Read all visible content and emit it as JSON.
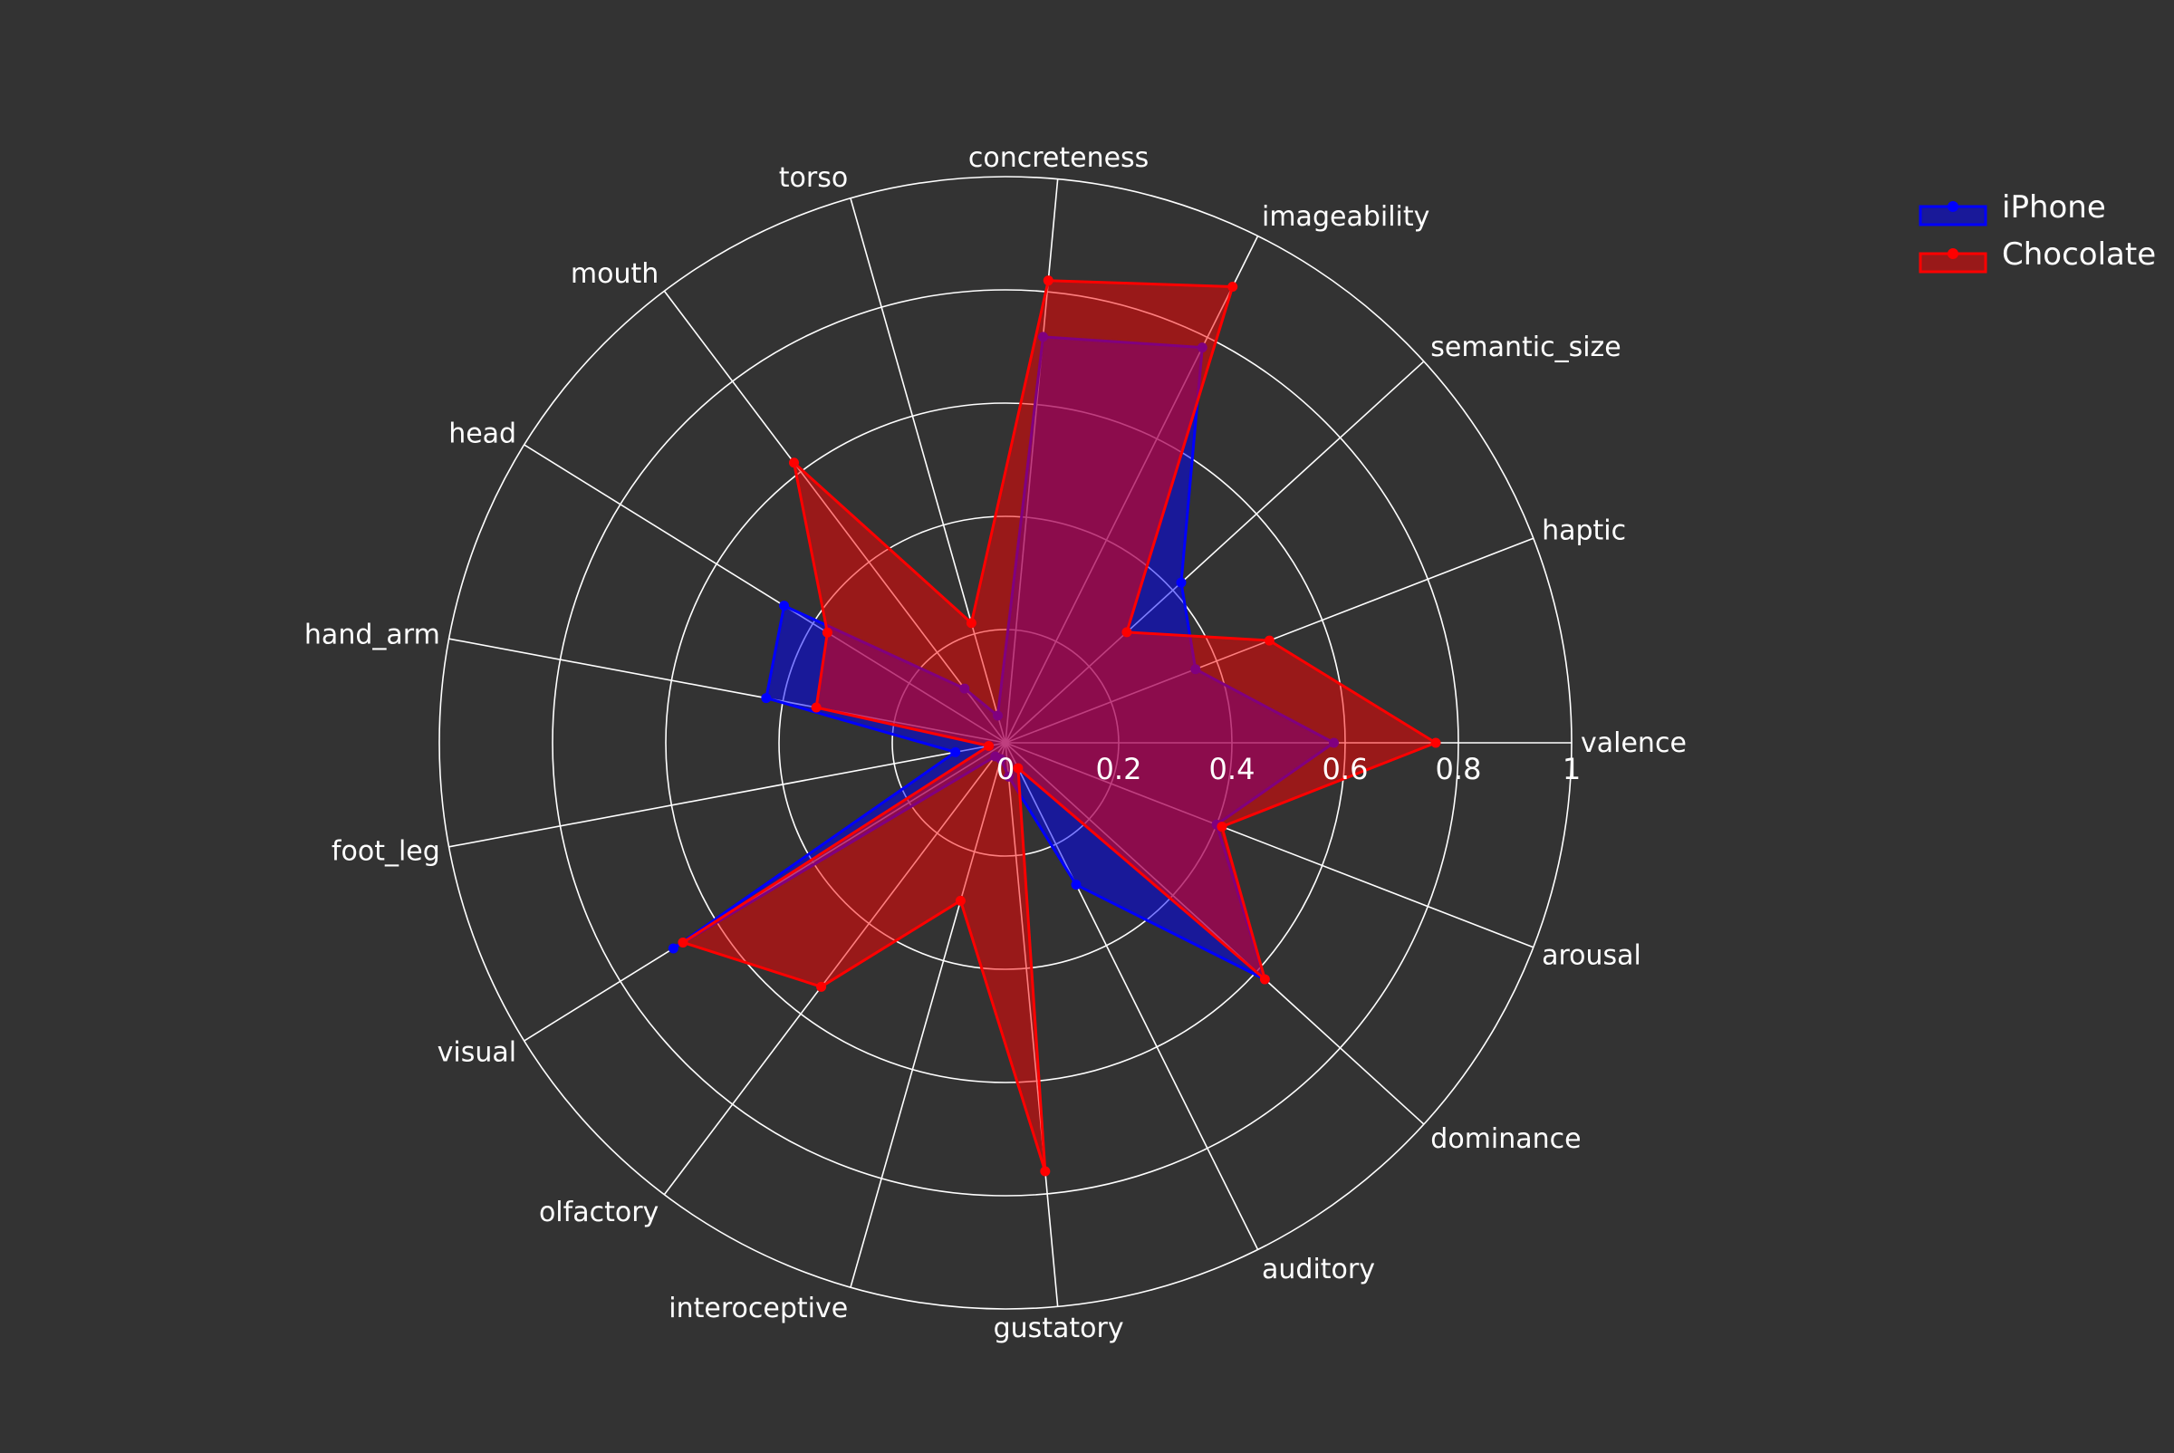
{
  "chart_data": {
    "type": "radar",
    "categories": [
      "valence",
      "arousal",
      "dominance",
      "auditory",
      "gustatory",
      "interoceptive",
      "olfactory",
      "visual",
      "foot_leg",
      "hand_arm",
      "head",
      "mouth",
      "torso",
      "concreteness",
      "imageability",
      "semantic_size",
      "haptic"
    ],
    "radial_ticks": [
      "0",
      "0.2",
      "0.4",
      "0.6",
      "0.8",
      "1"
    ],
    "radial_range": [
      0,
      1
    ],
    "grid": true,
    "legend_position": "top-right",
    "series": [
      {
        "name": "iPhone",
        "color": "#0000ff",
        "fill": "rgba(0,0,255,0.5)",
        "values": [
          0.58,
          0.4,
          0.62,
          0.28,
          0.06,
          0.03,
          0.03,
          0.69,
          0.09,
          0.43,
          0.46,
          0.12,
          0.05,
          0.72,
          0.78,
          0.42,
          0.36
        ]
      },
      {
        "name": "Chocolate",
        "color": "#ff0000",
        "fill": "rgba(255,0,0,0.5)",
        "values": [
          0.76,
          0.41,
          0.62,
          0.05,
          0.76,
          0.29,
          0.54,
          0.67,
          0.03,
          0.34,
          0.37,
          0.62,
          0.22,
          0.82,
          0.9,
          0.29,
          0.5
        ]
      }
    ]
  }
}
